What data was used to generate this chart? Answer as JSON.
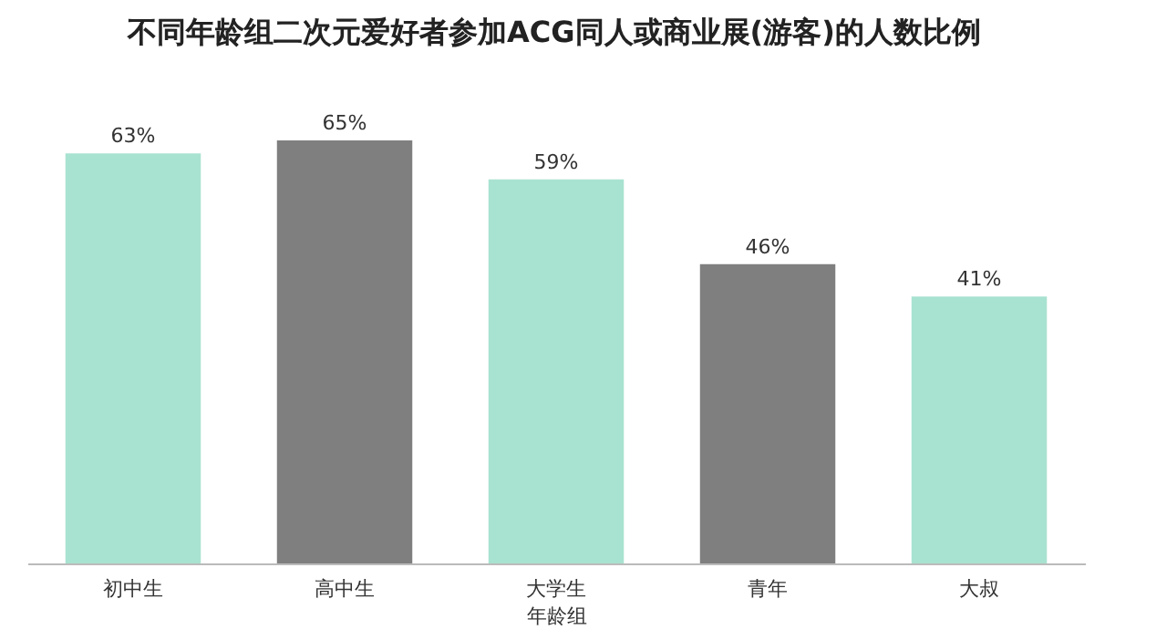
{
  "chart_data": {
    "type": "bar",
    "title": "不同年龄组二次元爱好者参加ACG同人或商业展(游客)的人数比例",
    "xlabel": "年龄组",
    "categories": [
      "初中生",
      "高中生",
      "大学生",
      "青年",
      "大叔"
    ],
    "values": [
      63,
      65,
      59,
      46,
      41
    ],
    "colors": [
      "#a8e2d0",
      "#7f7f7f",
      "#a8e2d0",
      "#7f7f7f",
      "#a8e2d0"
    ],
    "value_labels": [
      "63%",
      "65%",
      "59%",
      "46%",
      "41%"
    ]
  }
}
